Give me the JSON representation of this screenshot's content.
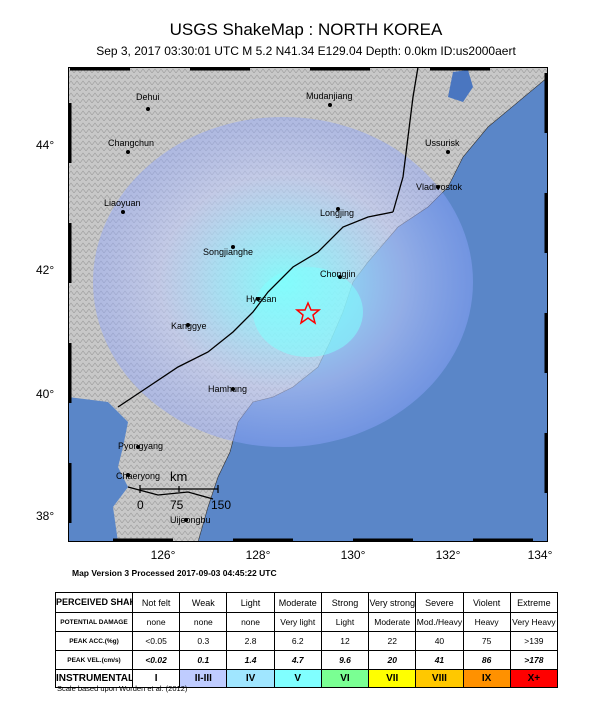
{
  "title": "USGS ShakeMap : NORTH KOREA",
  "subtitle": "Sep  3, 2017 03:30:01 UTC   M 5.2   N41.34 E129.04   Depth: 0.0km   ID:us2000aert",
  "scale_bar": {
    "unit": "km",
    "ticks": [
      "0",
      "75",
      "150"
    ]
  },
  "lat_labels": [
    "44°",
    "42°",
    "40°",
    "38°"
  ],
  "lon_labels": [
    "126°",
    "128°",
    "130°",
    "132°",
    "134°"
  ],
  "cities": {
    "dehui": "Dehui",
    "mudanjiang": "Mudanjiang",
    "changchun": "Changchun",
    "ussurisk": "Ussurisk",
    "liaoyuan": "Liaoyuan",
    "vladivostok": "Vladivostok",
    "longjing": "Longjing",
    "songjianghe": "Songjianghe",
    "chongjin": "Chongjin",
    "hyesan": "Hyesan",
    "kanggye": "Kanggye",
    "hamhung": "Hamhung",
    "pyongyang": "Pyongyang",
    "chaeryong": "Chaeryong",
    "uijeongbu": "Uijeongbu"
  },
  "epicenter": {
    "lat": 41.34,
    "lon": 129.04
  },
  "colors": {
    "ocean": "#5a86c8",
    "land": "#c4c4c4",
    "mmi_1": "#ffffff",
    "mmi_2_3": "#bfccff",
    "mmi_4": "#a0e6ff",
    "mmi_5": "#80ffff",
    "mmi_6": "#7aff93",
    "mmi_7": "#ffff00",
    "mmi_8": "#ffc800",
    "mmi_9": "#ff9100",
    "mmi_10": "#ff0000",
    "epicenter_star": "#ff0000"
  },
  "version_text": "Map Version 3 Processed 2017-09-03 04:45:22 UTC",
  "legend": {
    "shaking": {
      "label": "PERCEIVED SHAKING",
      "values": [
        "Not felt",
        "Weak",
        "Light",
        "Moderate",
        "Strong",
        "Very strong",
        "Severe",
        "Violent",
        "Extreme"
      ]
    },
    "damage": {
      "label": "POTENTIAL DAMAGE",
      "values": [
        "none",
        "none",
        "none",
        "Very light",
        "Light",
        "Moderate",
        "Mod./Heavy",
        "Heavy",
        "Very Heavy"
      ]
    },
    "acc": {
      "label": "PEAK ACC.(%g)",
      "values": [
        "<0.05",
        "0.3",
        "2.8",
        "6.2",
        "12",
        "22",
        "40",
        "75",
        ">139"
      ]
    },
    "vel": {
      "label": "PEAK VEL.(cm/s)",
      "values": [
        "<0.02",
        "0.1",
        "1.4",
        "4.7",
        "9.6",
        "20",
        "41",
        "86",
        ">178"
      ]
    },
    "mmi": {
      "label": "INSTRUMENTAL INTENSITY",
      "values": [
        "I",
        "II-III",
        "IV",
        "V",
        "VI",
        "VII",
        "VIII",
        "IX",
        "X+"
      ]
    }
  },
  "footnote": "Scale based upon Worden et al. (2012)"
}
